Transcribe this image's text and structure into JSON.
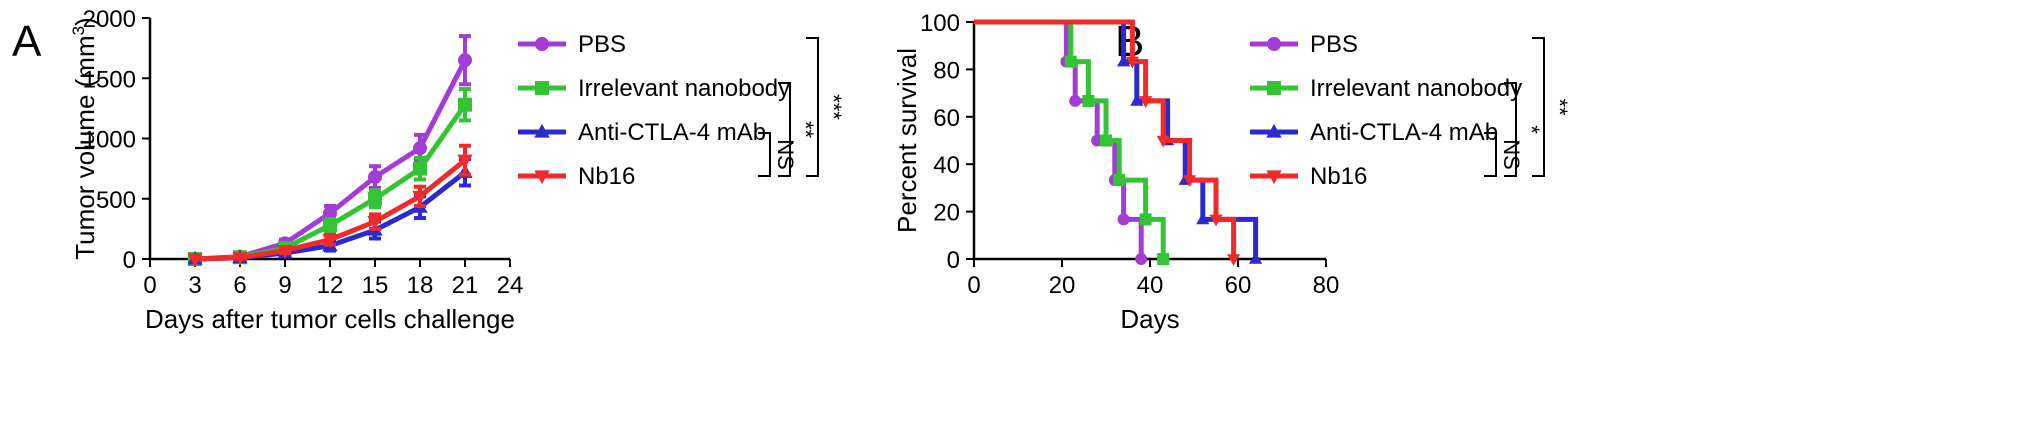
{
  "chart_data": [
    {
      "panel": "A",
      "type": "line",
      "xlabel": "Days after tumor cells challenge",
      "ylabel": "Tumor volume (mm",
      "ylabel_sup": "3",
      "ylabel_end": ")",
      "xlim": [
        0,
        24
      ],
      "ylim": [
        0,
        2000
      ],
      "xticks": [
        "0",
        "3",
        "6",
        "9",
        "12",
        "15",
        "18",
        "21",
        "24"
      ],
      "yticks": [
        "0",
        "500",
        "1000",
        "1500",
        "2000"
      ],
      "x": [
        3,
        6,
        9,
        12,
        15,
        18,
        21
      ],
      "series": [
        {
          "name": "PBS",
          "color": "#a33bd6",
          "marker": "circle",
          "values": [
            0,
            20,
            130,
            380,
            680,
            920,
            1650
          ],
          "errors": [
            0,
            10,
            30,
            60,
            90,
            110,
            200
          ]
        },
        {
          "name": "Irrelevant nanobody",
          "color": "#33c433",
          "marker": "square",
          "values": [
            0,
            15,
            90,
            280,
            500,
            750,
            1280
          ],
          "errors": [
            0,
            10,
            25,
            50,
            70,
            90,
            130
          ]
        },
        {
          "name": "Anti-CTLA-4 mAb",
          "color": "#2a2ad0",
          "marker": "triangle-up",
          "values": [
            0,
            10,
            50,
            110,
            240,
            430,
            720
          ],
          "errors": [
            0,
            5,
            15,
            40,
            70,
            90,
            110
          ]
        },
        {
          "name": "Nb16",
          "color": "#f02a2a",
          "marker": "triangle-down",
          "values": [
            0,
            10,
            70,
            160,
            310,
            520,
            820
          ],
          "errors": [
            0,
            5,
            20,
            40,
            60,
            80,
            120
          ]
        }
      ],
      "significance": [
        "NS",
        "**",
        "***"
      ]
    },
    {
      "panel": "B",
      "type": "line",
      "step": true,
      "xlabel": "Days",
      "ylabel": "Percent survival",
      "xlim": [
        0,
        80
      ],
      "ylim": [
        0,
        100
      ],
      "xticks": [
        "0",
        "20",
        "40",
        "60",
        "80"
      ],
      "yticks": [
        "0",
        "20",
        "40",
        "60",
        "80",
        "100"
      ],
      "series": [
        {
          "name": "PBS",
          "color": "#a33bd6",
          "marker": "circle",
          "points": [
            [
              0,
              100
            ],
            [
              21,
              100
            ],
            [
              21,
              83.3
            ],
            [
              23,
              83.3
            ],
            [
              23,
              66.7
            ],
            [
              28,
              66.7
            ],
            [
              28,
              50
            ],
            [
              32,
              50
            ],
            [
              32,
              33.3
            ],
            [
              34,
              33.3
            ],
            [
              34,
              16.7
            ],
            [
              38,
              16.7
            ],
            [
              38,
              0
            ]
          ]
        },
        {
          "name": "Irrelevant nanobody",
          "color": "#33c433",
          "marker": "square",
          "points": [
            [
              0,
              100
            ],
            [
              22,
              100
            ],
            [
              22,
              83.3
            ],
            [
              26,
              83.3
            ],
            [
              26,
              66.7
            ],
            [
              30,
              66.7
            ],
            [
              30,
              50
            ],
            [
              33,
              50
            ],
            [
              33,
              33.3
            ],
            [
              39,
              33.3
            ],
            [
              39,
              16.7
            ],
            [
              43,
              16.7
            ],
            [
              43,
              0
            ]
          ]
        },
        {
          "name": "Anti-CTLA-4 mAb",
          "color": "#2a2ad0",
          "marker": "triangle-up",
          "points": [
            [
              0,
              100
            ],
            [
              34,
              100
            ],
            [
              34,
              83.3
            ],
            [
              37,
              83.3
            ],
            [
              37,
              66.7
            ],
            [
              44,
              66.7
            ],
            [
              44,
              50
            ],
            [
              48,
              50
            ],
            [
              48,
              33.3
            ],
            [
              52,
              33.3
            ],
            [
              52,
              16.7
            ],
            [
              64,
              16.7
            ],
            [
              64,
              0
            ]
          ]
        },
        {
          "name": "Nb16",
          "color": "#f02a2a",
          "marker": "triangle-down",
          "points": [
            [
              0,
              100
            ],
            [
              36,
              100
            ],
            [
              36,
              83.3
            ],
            [
              39,
              83.3
            ],
            [
              39,
              66.7
            ],
            [
              43,
              66.7
            ],
            [
              43,
              50
            ],
            [
              49,
              50
            ],
            [
              49,
              33.3
            ],
            [
              55,
              33.3
            ],
            [
              55,
              16.7
            ],
            [
              59,
              16.7
            ],
            [
              59,
              0
            ]
          ]
        }
      ],
      "significance": [
        "NS",
        "*",
        "**"
      ]
    }
  ]
}
